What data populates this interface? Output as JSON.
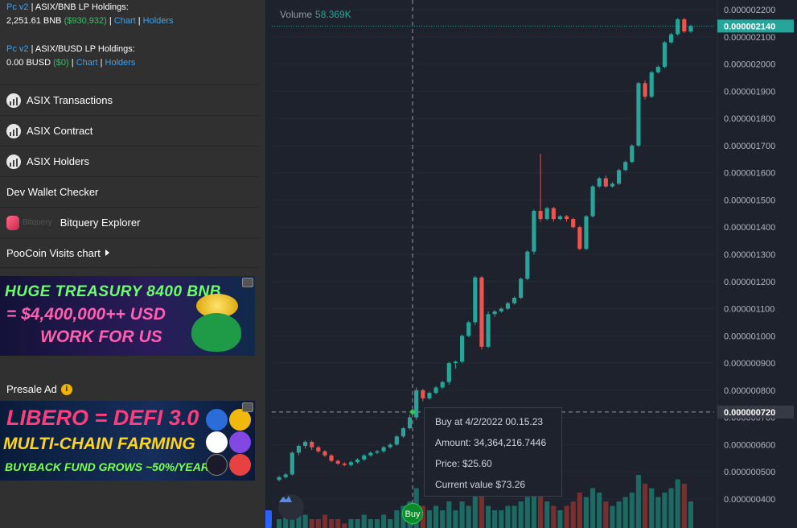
{
  "sidebar": {
    "holdings": [
      {
        "version": "Pc v2",
        "title": " | ASIX/BNB LP Holdings:",
        "amount": "2,251.61 BNB ",
        "value": "($930,932)",
        "chart": "Chart",
        "holders": "Holders"
      },
      {
        "version": "Pc v2",
        "title": " | ASIX/BUSD LP Holdings:",
        "amount": "0.00 BUSD ",
        "value": "($0)",
        "chart": "Chart",
        "holders": "Holders"
      }
    ],
    "links": [
      {
        "label": "ASIX Transactions",
        "icon": "chart-bars-icon"
      },
      {
        "label": "ASIX Contract",
        "icon": "chart-bars-icon"
      },
      {
        "label": "ASIX Holders",
        "icon": "chart-bars-icon"
      },
      {
        "label": "Dev Wallet Checker"
      },
      {
        "label": "Bitquery Explorer",
        "icon": "bitquery-logo",
        "logo_text": "Bitquery"
      },
      {
        "label": "PooCoin Visits chart"
      }
    ],
    "banner1": {
      "line1": "HUGE TREASURY 8400 BNB",
      "line2": "= $4,400,000++ USD",
      "line3": "WORK FOR US"
    },
    "presale_label": "Presale Ad",
    "presale_info_icon": "i",
    "banner2": {
      "line1": "LIBERO = DEFI 3.0",
      "line2": "MULTI-CHAIN FARMING",
      "line3": "BUYBACK FUND GROWS ~50%/YEAR"
    }
  },
  "chart": {
    "volume_label": "Volume",
    "volume_value": "58.369K",
    "last_price_label": "0.000002140",
    "crosshair_price_label": "0.000000720",
    "buy_marker": "Buy",
    "tooltip": {
      "buy_at": "Buy at 4/2/2022 00.15.23",
      "amount": "Amount: 34,364,216.7446",
      "price": "Price: $25.60",
      "current_value": "Current value $73.26"
    },
    "colors": {
      "up": "#26a69a",
      "down": "#ef5350",
      "background": "#1e222d"
    }
  },
  "chart_data": {
    "type": "candlestick",
    "y_ticks": [
      "0.000002200",
      "0.000002100",
      "0.000002000",
      "0.000001900",
      "0.000001800",
      "0.000001700",
      "0.000001600",
      "0.000001500",
      "0.000001400",
      "0.000001300",
      "0.000001200",
      "0.000001100",
      "0.000001000",
      "0.000000900",
      "0.000000800",
      "0.000000700",
      "0.000000600",
      "0.000000500",
      "0.000000400"
    ],
    "ylim": [
      3.7e-07,
      2.23e-06
    ],
    "candles": [
      [
        4.7e-07,
        4.8e-07,
        4.65e-07,
        4.85e-07
      ],
      [
        4.8e-07,
        4.9e-07,
        4.75e-07,
        4.95e-07
      ],
      [
        4.9e-07,
        5.7e-07,
        4.85e-07,
        5.75e-07
      ],
      [
        5.7e-07,
        5.95e-07,
        5.6e-07,
        6e-07
      ],
      [
        5.95e-07,
        6.1e-07,
        5.85e-07,
        6.15e-07
      ],
      [
        6.1e-07,
        5.9e-07,
        5.8e-07,
        6.15e-07
      ],
      [
        5.9e-07,
        5.75e-07,
        5.7e-07,
        5.95e-07
      ],
      [
        5.75e-07,
        5.6e-07,
        5.55e-07,
        5.8e-07
      ],
      [
        5.6e-07,
        5.4e-07,
        5.35e-07,
        5.65e-07
      ],
      [
        5.4e-07,
        5.3e-07,
        5.25e-07,
        5.45e-07
      ],
      [
        5.3e-07,
        5.25e-07,
        5.2e-07,
        5.35e-07
      ],
      [
        5.25e-07,
        5.35e-07,
        5.2e-07,
        5.4e-07
      ],
      [
        5.35e-07,
        5.45e-07,
        5.3e-07,
        5.5e-07
      ],
      [
        5.45e-07,
        5.6e-07,
        5.4e-07,
        5.65e-07
      ],
      [
        5.6e-07,
        5.7e-07,
        5.55e-07,
        5.75e-07
      ],
      [
        5.7e-07,
        5.75e-07,
        5.65e-07,
        5.8e-07
      ],
      [
        5.75e-07,
        5.9e-07,
        5.7e-07,
        5.95e-07
      ],
      [
        5.9e-07,
        6e-07,
        5.85e-07,
        6.05e-07
      ],
      [
        6e-07,
        6.3e-07,
        5.95e-07,
        6.35e-07
      ],
      [
        6.3e-07,
        6.6e-07,
        6.25e-07,
        6.65e-07
      ],
      [
        6.6e-07,
        7e-07,
        6.55e-07,
        7.1e-07
      ],
      [
        7e-07,
        8e-07,
        6.9e-07,
        8.1e-07
      ],
      [
        8e-07,
        7.7e-07,
        7.6e-07,
        8.05e-07
      ],
      [
        7.7e-07,
        7.9e-07,
        7.65e-07,
        7.95e-07
      ],
      [
        7.9e-07,
        8.1e-07,
        7.85e-07,
        8.15e-07
      ],
      [
        8.1e-07,
        8.3e-07,
        8.05e-07,
        8.35e-07
      ],
      [
        8.3e-07,
        9e-07,
        8.2e-07,
        9.05e-07
      ],
      [
        9e-07,
        9.05e-07,
        8.8e-07,
        9.1e-07
      ],
      [
        9.05e-07,
        1e-06,
        9e-07,
        1.005e-06
      ],
      [
        1e-06,
        1.05e-06,
        9.95e-07,
        1.055e-06
      ],
      [
        1.05e-06,
        1.215e-06,
        1.04e-06,
        1.22e-06
      ],
      [
        1.215e-06,
        9.6e-07,
        9.5e-07,
        1.22e-06
      ],
      [
        9.6e-07,
        1.08e-06,
        9.55e-07,
        1.09e-06
      ],
      [
        1.08e-06,
        1.09e-06,
        1.07e-06,
        1.095e-06
      ],
      [
        1.09e-06,
        1.1e-06,
        1.085e-06,
        1.105e-06
      ],
      [
        1.1e-06,
        1.12e-06,
        1.095e-06,
        1.125e-06
      ],
      [
        1.12e-06,
        1.14e-06,
        1.115e-06,
        1.145e-06
      ],
      [
        1.14e-06,
        1.21e-06,
        1.135e-06,
        1.215e-06
      ],
      [
        1.21e-06,
        1.31e-06,
        1.205e-06,
        1.315e-06
      ],
      [
        1.31e-06,
        1.46e-06,
        1.3e-06,
        1.465e-06
      ],
      [
        1.46e-06,
        1.43e-06,
        1.42e-06,
        1.67e-06
      ],
      [
        1.43e-06,
        1.47e-06,
        1.425e-06,
        1.475e-06
      ],
      [
        1.47e-06,
        1.43e-06,
        1.42e-06,
        1.475e-06
      ],
      [
        1.43e-06,
        1.44e-06,
        1.425e-06,
        1.445e-06
      ],
      [
        1.44e-06,
        1.43e-06,
        1.42e-06,
        1.445e-06
      ],
      [
        1.43e-06,
        1.4e-06,
        1.395e-06,
        1.435e-06
      ],
      [
        1.4e-06,
        1.32e-06,
        1.315e-06,
        1.405e-06
      ],
      [
        1.32e-06,
        1.44e-06,
        1.315e-06,
        1.445e-06
      ],
      [
        1.44e-06,
        1.55e-06,
        1.435e-06,
        1.555e-06
      ],
      [
        1.55e-06,
        1.58e-06,
        1.545e-06,
        1.585e-06
      ],
      [
        1.58e-06,
        1.55e-06,
        1.545e-06,
        1.59e-06
      ],
      [
        1.55e-06,
        1.56e-06,
        1.545e-06,
        1.565e-06
      ],
      [
        1.56e-06,
        1.61e-06,
        1.555e-06,
        1.615e-06
      ],
      [
        1.61e-06,
        1.64e-06,
        1.605e-06,
        1.645e-06
      ],
      [
        1.64e-06,
        1.7e-06,
        1.635e-06,
        1.705e-06
      ],
      [
        1.7e-06,
        1.93e-06,
        1.695e-06,
        1.935e-06
      ],
      [
        1.93e-06,
        1.88e-06,
        1.87e-06,
        1.94e-06
      ],
      [
        1.88e-06,
        1.97e-06,
        1.875e-06,
        1.975e-06
      ],
      [
        1.97e-06,
        1.99e-06,
        1.965e-06,
        1.995e-06
      ],
      [
        1.99e-06,
        2.08e-06,
        1.985e-06,
        2.085e-06
      ],
      [
        2.08e-06,
        2.11e-06,
        2.075e-06,
        2.115e-06
      ],
      [
        2.11e-06,
        2.165e-06,
        2.105e-06,
        2.17e-06
      ],
      [
        2.165e-06,
        2.12e-06,
        2.115e-06,
        2.17e-06
      ],
      [
        2.12e-06,
        2.14e-06,
        2.115e-06,
        2.145e-06
      ]
    ],
    "volumes": [
      2,
      3,
      5,
      4,
      3,
      2,
      2,
      3,
      2,
      2,
      1,
      2,
      2,
      3,
      2,
      2,
      3,
      2,
      4,
      5,
      6,
      9,
      5,
      4,
      5,
      4,
      6,
      4,
      6,
      5,
      8,
      10,
      5,
      4,
      4,
      5,
      5,
      6,
      7,
      10,
      9,
      6,
      5,
      4,
      5,
      6,
      8,
      7,
      9,
      8,
      6,
      5,
      6,
      7,
      8,
      12,
      10,
      9,
      7,
      8,
      9,
      11,
      10,
      6
    ],
    "volume_ylim": [
      0,
      12
    ]
  }
}
